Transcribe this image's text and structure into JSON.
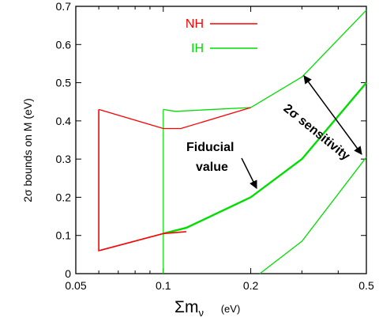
{
  "chart_data": {
    "type": "line",
    "title": "",
    "xlabel_symbol": "Σm",
    "xlabel_subscript": "ν",
    "xlabel_unit": "(eV)",
    "ylabel": "2σ bounds on M  (eV)",
    "xscale": "log",
    "xlim": [
      0.05,
      0.5
    ],
    "ylim": [
      0,
      0.7
    ],
    "x_ticks": [
      0.05,
      0.1,
      0.2,
      0.5
    ],
    "x_tick_labels": [
      "0.05",
      "0.1",
      "0.2",
      "0.5"
    ],
    "y_ticks": [
      0,
      0.1,
      0.2,
      0.3,
      0.4,
      0.5,
      0.6,
      0.7
    ],
    "y_tick_labels": [
      "0",
      "0.1",
      "0.2",
      "0.3",
      "0.4",
      "0.5",
      "0.6",
      "0.7"
    ],
    "legend_position": "top-center",
    "series": [
      {
        "name": "NH",
        "color": "#ff0000",
        "points": [
          [
            0.06,
            0.43
          ],
          [
            0.06,
            0.06
          ],
          [
            0.1,
            0.105
          ],
          [
            0.12,
            0.11
          ]
        ],
        "upper_points": [
          [
            0.06,
            0.43
          ],
          [
            0.1,
            0.38
          ],
          [
            0.115,
            0.38
          ],
          [
            0.2,
            0.435
          ]
        ]
      },
      {
        "name": "IH",
        "color": "#00dd00",
        "points": [
          [
            0.1,
            0.105
          ],
          [
            0.12,
            0.12
          ],
          [
            0.2,
            0.2
          ],
          [
            0.3,
            0.3
          ],
          [
            0.5,
            0.5
          ]
        ],
        "upper_points": [
          [
            0.1,
            0.43
          ],
          [
            0.11,
            0.425
          ],
          [
            0.2,
            0.435
          ],
          [
            0.3,
            0.515
          ],
          [
            0.5,
            0.69
          ]
        ],
        "lower_points": [
          [
            0.215,
            0
          ],
          [
            0.3,
            0.085
          ],
          [
            0.5,
            0.305
          ]
        ],
        "cutoff": [
          [
            0.1,
            0
          ],
          [
            0.1,
            0.43
          ]
        ]
      }
    ],
    "annotations": {
      "fiducial_line1": "Fiducial",
      "fiducial_line2": "value",
      "sensitivity": "2σ sensitivity"
    }
  }
}
